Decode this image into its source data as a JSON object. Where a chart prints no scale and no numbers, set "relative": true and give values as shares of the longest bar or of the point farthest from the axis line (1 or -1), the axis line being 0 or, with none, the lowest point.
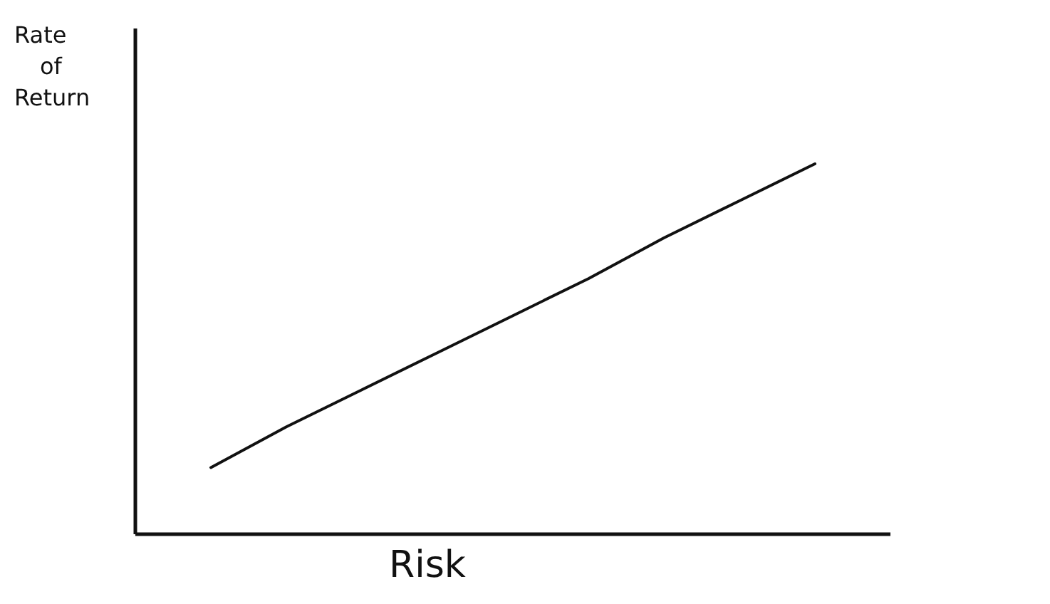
{
  "chart_data": {
    "type": "line",
    "xlabel": "Risk",
    "ylabel": "Rate of Return",
    "relative": true,
    "color": "#111111",
    "categories": [
      null,
      null,
      null,
      null,
      null,
      null,
      null,
      null,
      null,
      null,
      null
    ],
    "values": [
      null,
      0.18,
      0.29,
      0.39,
      0.49,
      0.59,
      0.69,
      0.8,
      0.9,
      1.0,
      null
    ]
  }
}
